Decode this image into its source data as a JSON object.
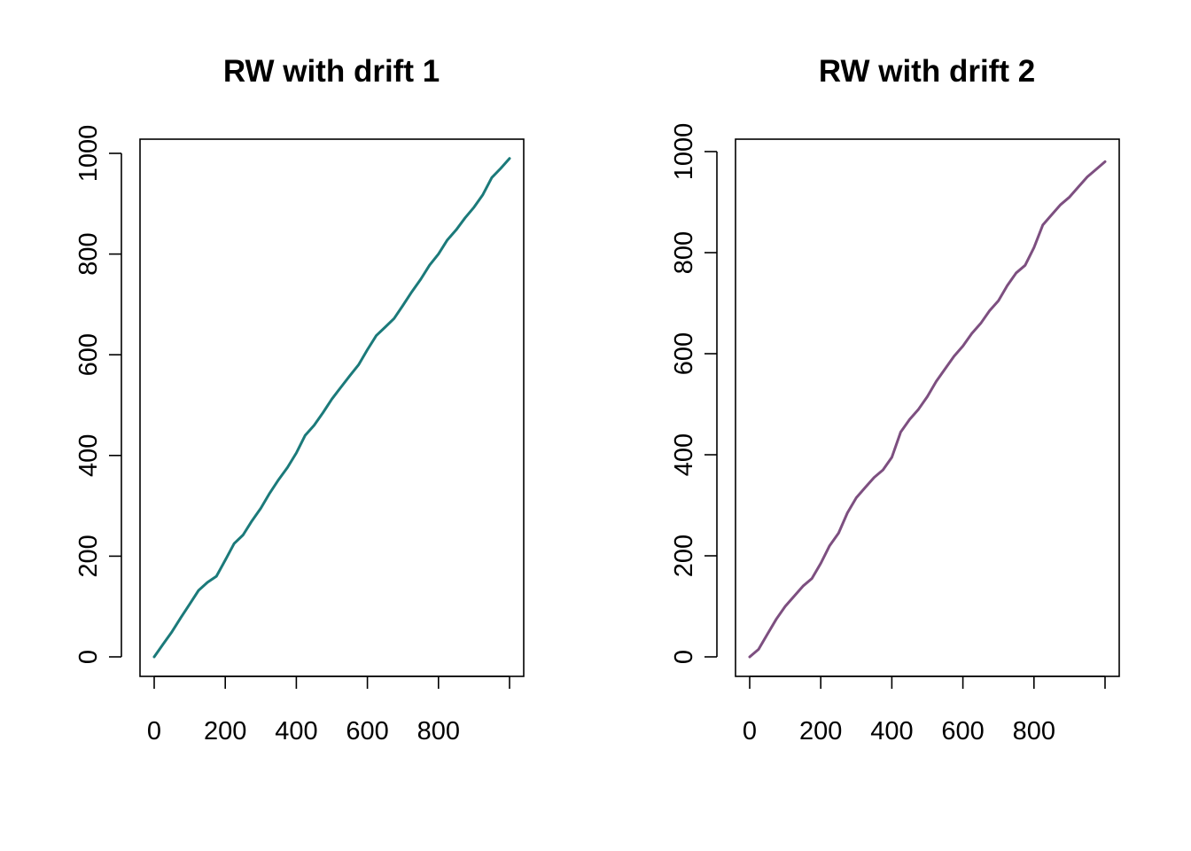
{
  "chart_data": [
    {
      "type": "line",
      "title": "RW with drift 1",
      "xlabel": "",
      "ylabel": "",
      "xlim": [
        0,
        1000
      ],
      "ylim": [
        0,
        1000
      ],
      "x_ticks": [
        0,
        200,
        400,
        600,
        800,
        1000
      ],
      "x_tick_labels": [
        "0",
        "200",
        "400",
        "600",
        "800",
        ""
      ],
      "y_ticks": [
        0,
        200,
        400,
        600,
        800,
        1000
      ],
      "y_tick_labels": [
        "0",
        "200",
        "400",
        "600",
        "800",
        "1000"
      ],
      "grid": false,
      "color": "#1b7a7a",
      "series": [
        {
          "x": [
            0,
            25,
            50,
            75,
            100,
            125,
            150,
            175,
            200,
            225,
            250,
            275,
            300,
            325,
            350,
            375,
            400,
            425,
            450,
            475,
            500,
            525,
            550,
            575,
            600,
            625,
            650,
            675,
            700,
            725,
            750,
            775,
            800,
            825,
            850,
            875,
            900,
            925,
            950,
            975,
            1000
          ],
          "y": [
            0,
            25,
            50,
            78,
            105,
            132,
            148,
            160,
            192,
            225,
            242,
            270,
            295,
            325,
            352,
            376,
            405,
            440,
            460,
            485,
            512,
            535,
            558,
            580,
            610,
            638,
            655,
            672,
            698,
            725,
            750,
            778,
            800,
            828,
            848,
            872,
            893,
            918,
            952,
            970,
            990
          ]
        }
      ]
    },
    {
      "type": "line",
      "title": "RW with drift 2",
      "xlabel": "",
      "ylabel": "",
      "xlim": [
        0,
        1000
      ],
      "ylim": [
        0,
        1000
      ],
      "x_ticks": [
        0,
        200,
        400,
        600,
        800,
        1000
      ],
      "x_tick_labels": [
        "0",
        "200",
        "400",
        "600",
        "800",
        ""
      ],
      "y_ticks": [
        0,
        200,
        400,
        600,
        800,
        1000
      ],
      "y_tick_labels": [
        "0",
        "200",
        "400",
        "600",
        "800",
        "1000"
      ],
      "grid": false,
      "color": "#7d4f80",
      "series": [
        {
          "x": [
            0,
            25,
            50,
            75,
            100,
            125,
            150,
            175,
            200,
            225,
            250,
            275,
            300,
            325,
            350,
            375,
            400,
            425,
            450,
            475,
            500,
            525,
            550,
            575,
            600,
            625,
            650,
            675,
            700,
            725,
            750,
            775,
            800,
            825,
            850,
            875,
            900,
            925,
            950,
            975,
            1000
          ],
          "y": [
            0,
            15,
            45,
            75,
            100,
            120,
            140,
            155,
            185,
            220,
            245,
            285,
            315,
            335,
            355,
            370,
            395,
            445,
            470,
            490,
            515,
            545,
            570,
            595,
            615,
            640,
            660,
            685,
            705,
            735,
            760,
            775,
            810,
            855,
            875,
            895,
            910,
            930,
            950,
            965,
            980
          ]
        }
      ]
    }
  ]
}
